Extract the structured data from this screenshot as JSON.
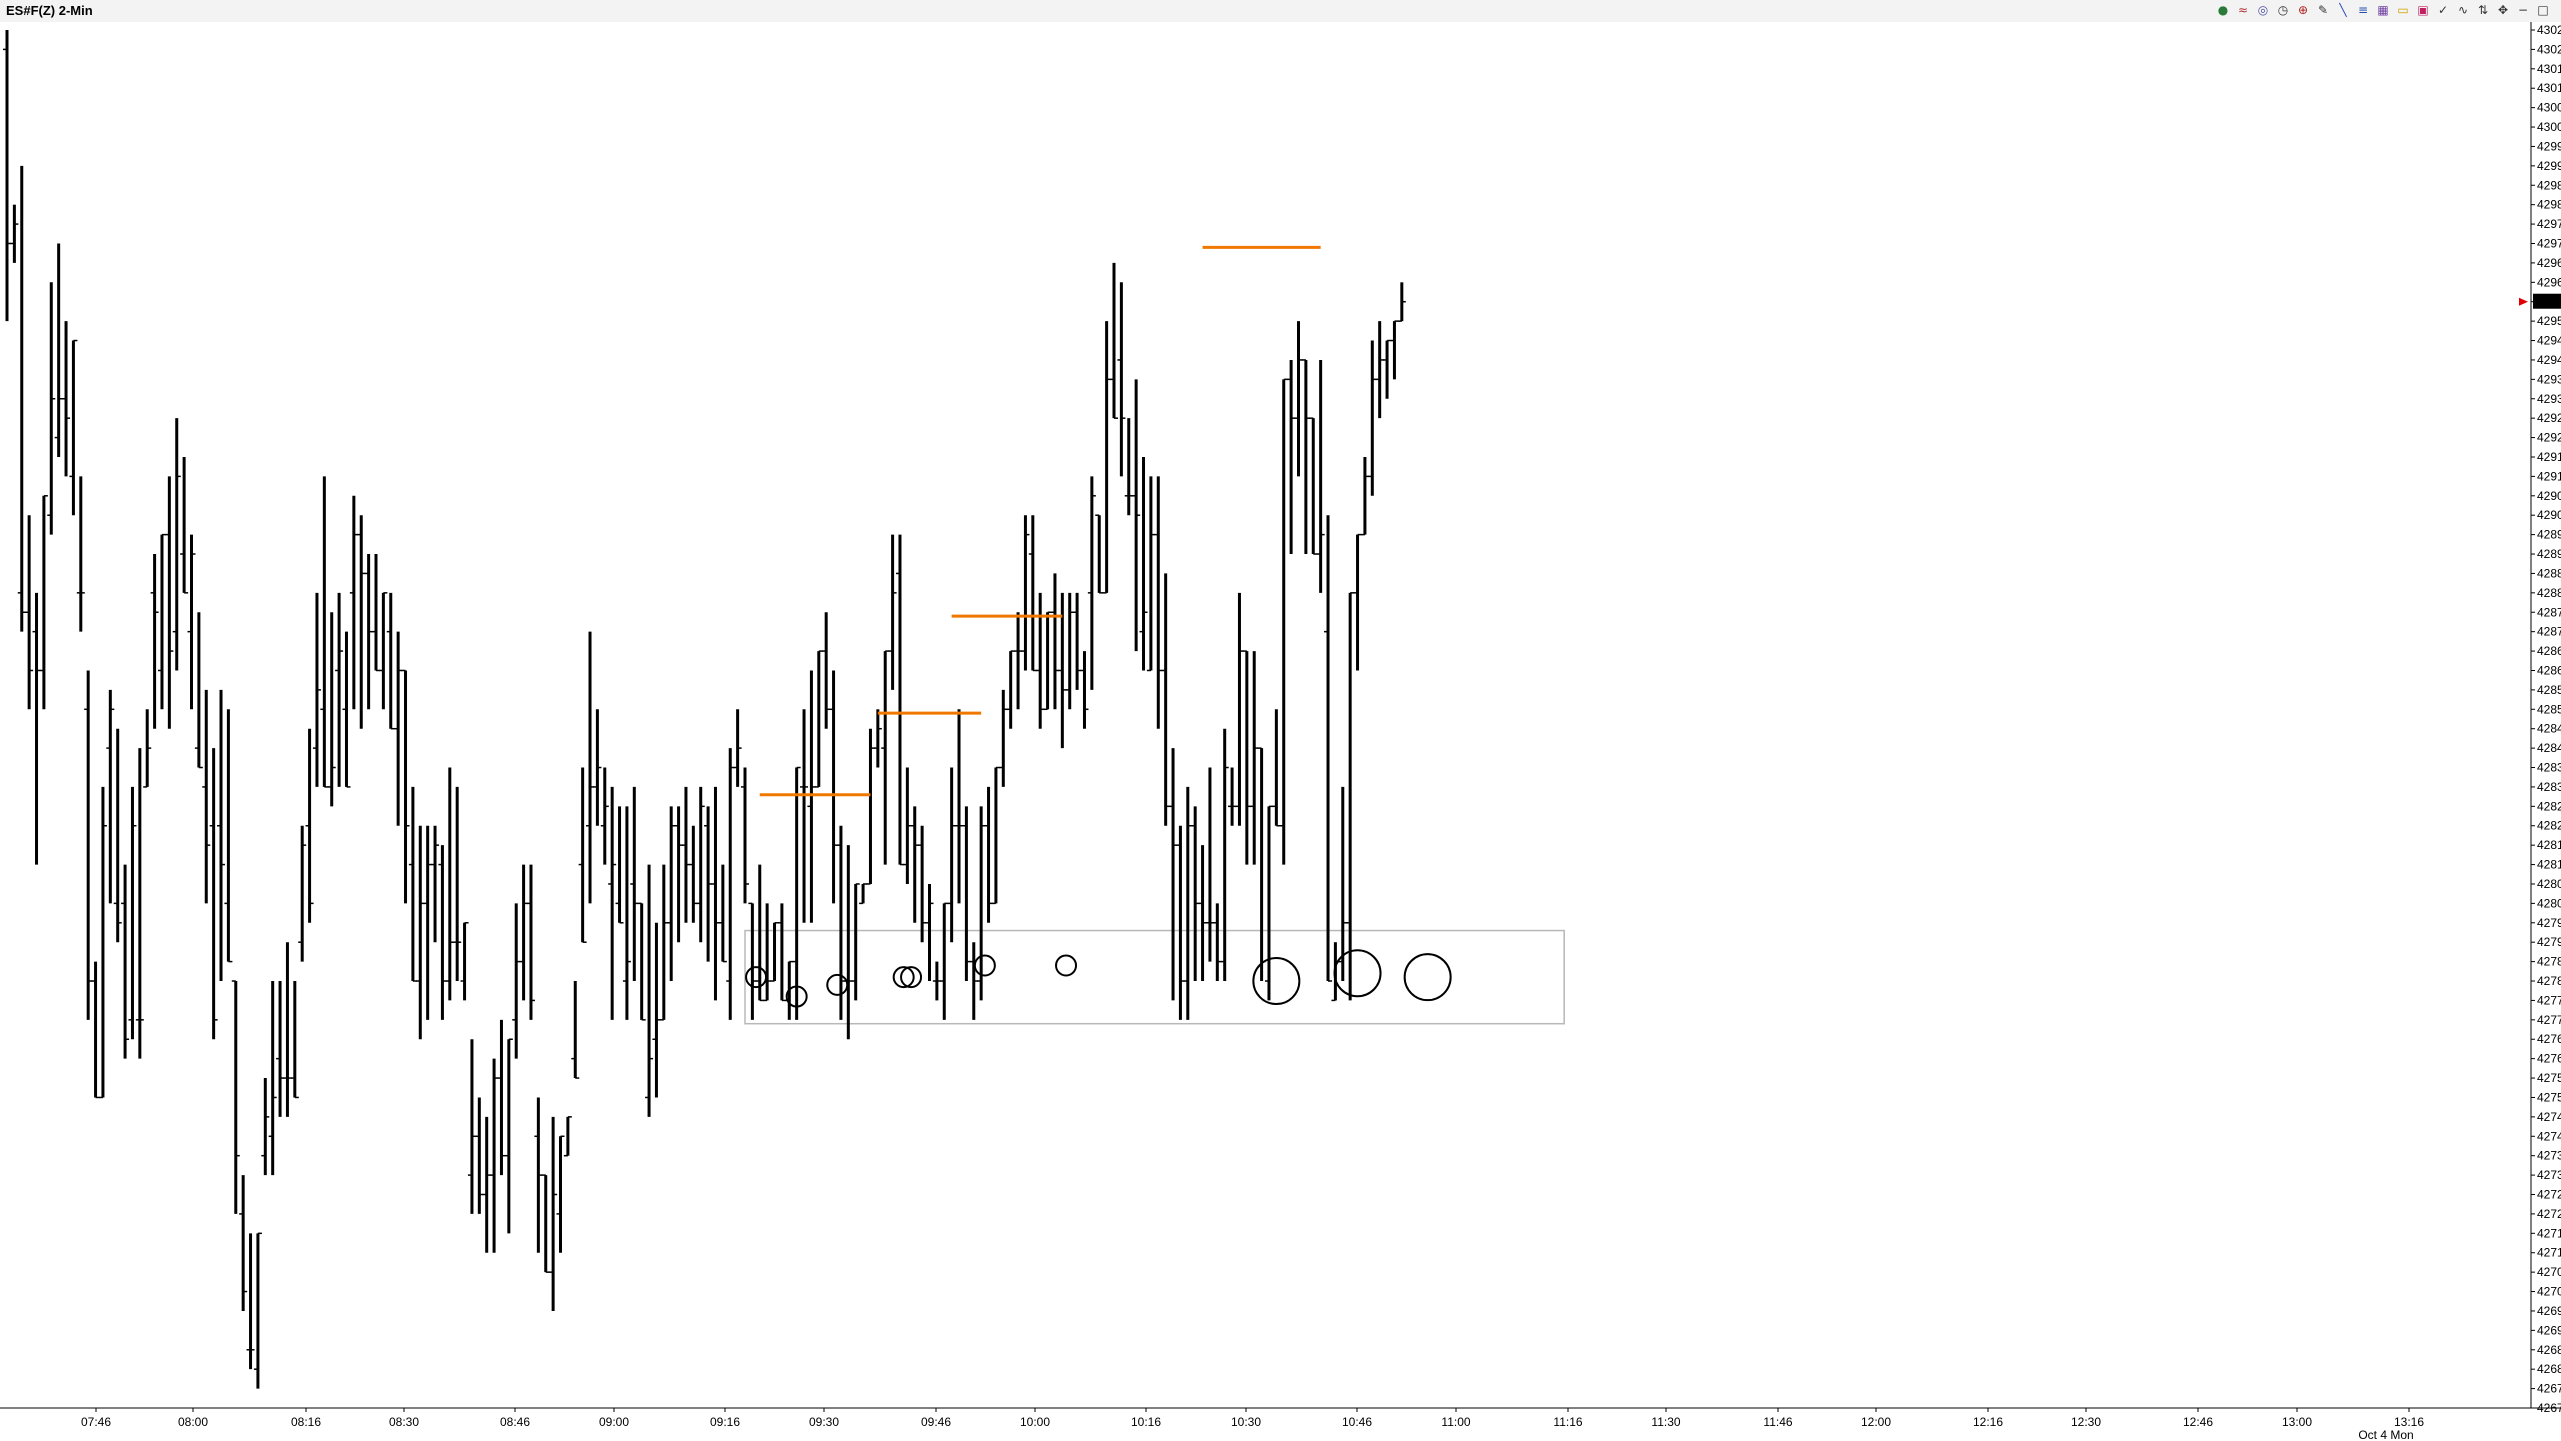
{
  "window": {
    "title": "ES#F(Z) 2-Min"
  },
  "toolbar": {
    "icons": [
      "globe-icon",
      "signal-icon",
      "circle-icon",
      "clock-icon",
      "crosshair-icon",
      "pencil-icon",
      "line-icon",
      "fib-icon",
      "grid-icon",
      "rectangle-icon",
      "highlight-icon",
      "check-icon",
      "curve-icon",
      "arrow-up-down-icon",
      "arrows-icon",
      "minus-icon",
      "box-icon"
    ]
  },
  "chart_data": {
    "type": "bar",
    "symbol": "ES#F(Z)",
    "interval": "2-Min",
    "ylim": [
      4267.0,
      4302.5
    ],
    "y_tick_step": 0.5,
    "x_ticks": [
      "07:46",
      "08:00",
      "08:16",
      "08:30",
      "08:46",
      "09:00",
      "09:16",
      "09:30",
      "09:46",
      "10:00",
      "10:16",
      "10:30",
      "10:46",
      "11:00",
      "11:16",
      "11:30",
      "11:46",
      "12:00",
      "12:16",
      "12:30",
      "12:46",
      "13:00",
      "13:16"
    ],
    "date_label": "Oct 4 Mon",
    "last_price": "4295.50",
    "bars": [
      [
        4302.0,
        4302.5,
        4295.0,
        4297.0
      ],
      [
        4297.0,
        4298.0,
        4296.5,
        4297.5
      ],
      [
        4288.0,
        4299.0,
        4287.0,
        4287.5
      ],
      [
        4287.5,
        4290.0,
        4285.0,
        4286.0
      ],
      [
        4287.0,
        4288.0,
        4281.0,
        4286.0
      ],
      [
        4286.0,
        4289.0,
        4285.0,
        4290.5
      ],
      [
        4290.0,
        4296.0,
        4289.5,
        4293.0
      ],
      [
        4292.0,
        4297.0,
        4291.5,
        4293.0
      ],
      [
        4293.0,
        4295.0,
        4291.0,
        4292.5
      ],
      [
        4291.0,
        4294.0,
        4290.0,
        4294.5
      ],
      [
        4288.0,
        4291.0,
        4287.0,
        4288.0
      ],
      [
        4285.0,
        4286.0,
        4277.0,
        4278.0
      ],
      [
        4278.0,
        4278.5,
        4275.0,
        4275.0
      ],
      [
        4275.0,
        4283.0,
        4275.0,
        4282.0
      ],
      [
        4284.0,
        4285.5,
        4280.0,
        4285.0
      ],
      [
        4280.0,
        4284.5,
        4279.0,
        4279.5
      ],
      [
        4280.0,
        4281.0,
        4276.0,
        4276.5
      ],
      [
        4277.0,
        4283.0,
        4276.5,
        4282.0
      ],
      [
        4277.0,
        4284.0,
        4276.0,
        4277.0
      ],
      [
        4283.0,
        4285.0,
        4283.0,
        4284.0
      ],
      [
        4288.0,
        4289.0,
        4284.5,
        4287.5
      ],
      [
        4286.0,
        4289.5,
        4285.0,
        4289.5
      ],
      [
        4289.5,
        4291.0,
        4284.5,
        4286.5
      ],
      [
        4287.0,
        4292.5,
        4286.0,
        4291.0
      ],
      [
        4289.0,
        4291.5,
        4288.0,
        4288.0
      ],
      [
        4287.0,
        4289.5,
        4285.0,
        4289.0
      ],
      [
        4284.0,
        4287.5,
        4284.0,
        4283.5
      ],
      [
        4283.0,
        4285.5,
        4280.0,
        4281.5
      ],
      [
        4282.0,
        4284.0,
        4276.5,
        4277.0
      ],
      [
        4282.0,
        4285.5,
        4278.0,
        4281.0
      ],
      [
        4280.0,
        4285.0,
        4278.5,
        4278.5
      ],
      [
        4278.0,
        4276.0,
        4272.0,
        4273.5
      ],
      [
        4272.0,
        4273.0,
        4269.5,
        4270.0
      ],
      [
        4268.5,
        4271.5,
        4268.0,
        4268.5
      ],
      [
        4268.0,
        4271.0,
        4267.5,
        4271.5
      ],
      [
        4273.5,
        4275.5,
        4273.0,
        4274.5
      ],
      [
        4274.0,
        4278.0,
        4273.0,
        4275.0
      ],
      [
        4276.0,
        4278.0,
        4274.5,
        4275.5
      ],
      [
        4275.5,
        4279.0,
        4274.5,
        4275.5
      ],
      [
        4275.5,
        4278.0,
        4275.0,
        4275.0
      ],
      [
        4279.0,
        4282.0,
        4278.5,
        4281.5
      ],
      [
        4282.0,
        4284.5,
        4279.5,
        4280.0
      ],
      [
        4284.0,
        4288.0,
        4283.0,
        4285.5
      ],
      [
        4285.0,
        4291.0,
        4283.0,
        4283.0
      ],
      [
        4283.0,
        4287.5,
        4282.5,
        4283.5
      ],
      [
        4286.0,
        4288.0,
        4283.0,
        4286.5
      ],
      [
        4285.0,
        4287.0,
        4283.0,
        4283.0
      ],
      [
        4288.0,
        4290.5,
        4285.0,
        4289.5
      ],
      [
        4289.5,
        4290.0,
        4284.5,
        4288.5
      ],
      [
        4288.5,
        4289.0,
        4285.0,
        4287.0
      ],
      [
        4287.0,
        4289.0,
        4286.0,
        4286.0
      ],
      [
        4286.0,
        4288.0,
        4285.0,
        4288.0
      ],
      [
        4287.0,
        4288.0,
        4285.5,
        4284.5
      ],
      [
        4284.5,
        4287.0,
        4282.0,
        4286.0
      ],
      [
        4286.0,
        4285.5,
        4280.0,
        4282.0
      ],
      [
        4281.0,
        4283.0,
        4278.0,
        4278.0
      ],
      [
        4278.0,
        4282.0,
        4276.5,
        4280.0
      ],
      [
        4280.0,
        4282.0,
        4277.0,
        4281.0
      ],
      [
        4281.0,
        4282.0,
        4279.0,
        4281.5
      ],
      [
        4281.0,
        4281.5,
        4277.0,
        4278.0
      ],
      [
        4278.0,
        4283.5,
        4277.5,
        4279.0
      ],
      [
        4279.0,
        4283.0,
        4278.0,
        4279.0
      ],
      [
        4278.0,
        4279.5,
        4277.5,
        4279.5
      ],
      [
        4273.0,
        4276.5,
        4272.0,
        4274.0
      ],
      [
        4274.0,
        4275.0,
        4272.0,
        4272.5
      ],
      [
        4272.5,
        4274.5,
        4271.0,
        4273.0
      ],
      [
        4273.0,
        4276.0,
        4271.0,
        4275.5
      ],
      [
        4275.5,
        4277.0,
        4273.0,
        4273.5
      ],
      [
        4273.5,
        4275.5,
        4271.5,
        4276.5
      ],
      [
        4277.0,
        4280.0,
        4276.0,
        4278.5
      ],
      [
        4278.5,
        4281.0,
        4277.5,
        4280.0
      ],
      [
        4280.0,
        4281.0,
        4277.0,
        4277.5
      ],
      [
        4274.0,
        4275.0,
        4271.0,
        4273.0
      ],
      [
        4273.0,
        4272.5,
        4270.5,
        4270.5
      ],
      [
        4270.5,
        4274.5,
        4269.5,
        4272.5
      ],
      [
        4272.0,
        4274.0,
        4271.0,
        4274.0
      ],
      [
        4273.5,
        4274.5,
        4274.0,
        4274.5
      ],
      [
        4276.0,
        4278.0,
        4275.5,
        4275.5
      ],
      [
        4281.0,
        4283.5,
        4279.5,
        4279.0
      ],
      [
        4282.0,
        4287.0,
        4280.0,
        4283.0
      ],
      [
        4283.0,
        4285.0,
        4282.0,
        4283.5
      ],
      [
        4282.0,
        4283.5,
        4281.0,
        4282.5
      ],
      [
        4280.5,
        4283.0,
        4277.0,
        4281.0
      ],
      [
        4280.0,
        4282.5,
        4279.5,
        4279.5
      ],
      [
        4278.0,
        4282.5,
        4277.0,
        4278.5
      ],
      [
        4280.5,
        4283.0,
        4278.0,
        4280.0
      ],
      [
        4280.0,
        4280.0,
        4277.0,
        4277.0
      ],
      [
        4275.0,
        4281.0,
        4274.5,
        4276.0
      ],
      [
        4276.5,
        4279.5,
        4275.0,
        4277.0
      ],
      [
        4277.0,
        4281.0,
        4277.0,
        4279.5
      ],
      [
        4279.5,
        4282.5,
        4278.0,
        4282.0
      ],
      [
        4282.0,
        4282.5,
        4279.0,
        4281.5
      ],
      [
        4281.5,
        4283.0,
        4279.5,
        4281.0
      ],
      [
        4281.0,
        4282.0,
        4279.5,
        4280.0
      ],
      [
        4280.0,
        4283.0,
        4279.0,
        4282.5
      ],
      [
        4282.0,
        4282.5,
        4278.5,
        4280.5
      ],
      [
        4280.5,
        4283.0,
        4277.5,
        4279.5
      ],
      [
        4279.5,
        4281.0,
        4278.5,
        4278.5
      ],
      [
        4278.0,
        4284.0,
        4277.0,
        4283.5
      ],
      [
        4283.5,
        4285.0,
        4283.0,
        4284.0
      ],
      [
        4283.0,
        4283.5,
        4280.0,
        4280.5
      ],
      [
        4280.0,
        4279.5,
        4277.0,
        4278.0
      ],
      [
        4278.0,
        4281.0,
        4277.5,
        4277.5
      ],
      [
        4277.5,
        4280.0,
        4277.5,
        4278.0
      ],
      [
        4278.0,
        4279.5,
        4278.0,
        4279.5
      ],
      [
        4279.5,
        4280.0,
        4277.5,
        4277.5
      ],
      [
        4277.5,
        4277.0,
        4277.0,
        4278.5
      ],
      [
        4278.5,
        4283.0,
        4277.0,
        4283.5
      ],
      [
        4283.0,
        4285.0,
        4279.5,
        4283.0
      ],
      [
        4282.5,
        4286.0,
        4279.5,
        4283.0
      ],
      [
        4283.0,
        4286.5,
        4283.0,
        4286.5
      ],
      [
        4286.5,
        4287.5,
        4284.5,
        4285.0
      ],
      [
        4285.0,
        4286.0,
        4280.0,
        4281.5
      ],
      [
        4281.5,
        4282.0,
        4277.0,
        4278.0
      ],
      [
        4278.0,
        4281.5,
        4276.5,
        4278.0
      ],
      [
        4278.0,
        4280.5,
        4277.5,
        4280.5
      ],
      [
        4280.0,
        4280.0,
        4280.0,
        4280.5
      ],
      [
        4280.5,
        4284.5,
        4280.5,
        4284.0
      ],
      [
        4284.0,
        4285.0,
        4283.5,
        4284.5
      ],
      [
        4284.0,
        4286.5,
        4281.0,
        4286.5
      ],
      [
        4286.5,
        4289.5,
        4285.5,
        4288.0
      ],
      [
        4288.5,
        4289.5,
        4286.5,
        4281.0
      ],
      [
        4281.0,
        4283.5,
        4280.5,
        4282.0
      ],
      [
        4282.0,
        4282.5,
        4279.5,
        4281.5
      ],
      [
        4281.5,
        4282.0,
        4279.0,
        4279.5
      ],
      [
        4279.5,
        4280.5,
        4278.0,
        4280.0
      ],
      [
        4278.0,
        4278.5,
        4277.5,
        4278.0
      ],
      [
        4278.0,
        4280.0,
        4277.0,
        4280.0
      ],
      [
        4280.0,
        4283.5,
        4279.0,
        4282.0
      ],
      [
        4282.0,
        4285.0,
        4280.0,
        4282.0
      ],
      [
        4282.0,
        4282.5,
        4278.0,
        4278.5
      ],
      [
        4278.5,
        4279.0,
        4277.0,
        4278.0
      ],
      [
        4278.0,
        4282.5,
        4277.5,
        4282.0
      ],
      [
        4282.0,
        4283.0,
        4279.5,
        4280.0
      ],
      [
        4280.0,
        4283.5,
        4280.0,
        4283.5
      ],
      [
        4283.5,
        4285.5,
        4283.0,
        4285.0
      ],
      [
        4285.0,
        4286.5,
        4284.5,
        4286.5
      ],
      [
        4286.5,
        4287.5,
        4285.0,
        4286.5
      ],
      [
        4286.5,
        4290.0,
        4286.0,
        4289.5
      ],
      [
        4289.0,
        4290.0,
        4286.0,
        4286.0
      ],
      [
        4286.0,
        4288.0,
        4284.5,
        4285.0
      ],
      [
        4285.0,
        4287.5,
        4285.0,
        4287.5
      ],
      [
        4287.5,
        4288.5,
        4285.0,
        4286.0
      ],
      [
        4286.0,
        4288.0,
        4284.0,
        4285.5
      ],
      [
        4285.5,
        4288.0,
        4285.0,
        4287.5
      ],
      [
        4287.5,
        4288.0,
        4285.5,
        4286.0
      ],
      [
        4286.0,
        4286.5,
        4284.5,
        4285.0
      ],
      [
        4288.0,
        4291.0,
        4285.5,
        4290.5
      ],
      [
        4290.0,
        4289.5,
        4288.0,
        4288.0
      ],
      [
        4288.0,
        4295.0,
        4288.0,
        4293.5
      ],
      [
        4293.5,
        4296.5,
        4292.5,
        4292.5
      ],
      [
        4294.0,
        4296.0,
        4291.0,
        4292.5
      ],
      [
        4290.5,
        4292.5,
        4290.0,
        4290.5
      ],
      [
        4290.5,
        4293.5,
        4286.5,
        4290.0
      ],
      [
        4287.0,
        4291.5,
        4286.0,
        4287.5
      ],
      [
        4286.0,
        4291.0,
        4286.0,
        4289.5
      ],
      [
        4289.5,
        4291.0,
        4284.5,
        4286.0
      ],
      [
        4286.0,
        4288.5,
        4282.0,
        4282.5
      ],
      [
        4282.5,
        4284.0,
        4277.5,
        4281.5
      ],
      [
        4281.5,
        4282.0,
        4277.0,
        4278.0
      ],
      [
        4278.0,
        4283.0,
        4277.0,
        4282.0
      ],
      [
        4282.0,
        4282.5,
        4278.0,
        4280.0
      ],
      [
        4280.0,
        4281.5,
        4278.0,
        4279.5
      ],
      [
        4279.5,
        4283.5,
        4278.5,
        4279.5
      ],
      [
        4279.5,
        4280.0,
        4278.0,
        4278.5
      ],
      [
        4278.5,
        4284.5,
        4278.0,
        4283.5
      ],
      [
        4282.5,
        4283.5,
        4282.0,
        4282.5
      ],
      [
        4282.5,
        4288.0,
        4282.0,
        4286.5
      ],
      [
        4286.5,
        4286.5,
        4281.0,
        4282.5
      ],
      [
        4282.5,
        4286.5,
        4281.0,
        4284.0
      ],
      [
        4284.0,
        4283.5,
        4278.0,
        4278.5
      ],
      [
        4278.0,
        4282.5,
        4277.5,
        4282.5
      ],
      [
        4282.5,
        4285.0,
        4282.0,
        4282.0
      ],
      [
        4282.0,
        4291.0,
        4281.0,
        4293.5
      ],
      [
        4293.5,
        4294.0,
        4289.0,
        4292.5
      ],
      [
        4292.5,
        4295.0,
        4291.0,
        4294.0
      ],
      [
        4294.0,
        4293.5,
        4289.0,
        4292.5
      ],
      [
        4292.5,
        4291.0,
        4289.0,
        4289.0
      ],
      [
        4289.0,
        4294.0,
        4288.0,
        4289.5
      ],
      [
        4287.0,
        4290.0,
        4278.0,
        4278.0
      ],
      [
        4277.5,
        4279.0,
        4277.5,
        4278.5
      ],
      [
        4278.5,
        4283.0,
        4278.0,
        4279.5
      ],
      [
        4279.5,
        4288.0,
        4277.5,
        4288.0
      ],
      [
        4288.0,
        4288.5,
        4286.0,
        4289.5
      ],
      [
        4289.5,
        4291.5,
        4289.5,
        4291.0
      ],
      [
        4291.0,
        4294.5,
        4290.5,
        4293.5
      ],
      [
        4293.5,
        4295.0,
        4292.5,
        4294.0
      ],
      [
        4294.0,
        4294.5,
        4293.0,
        4294.5
      ],
      [
        4294.5,
        4295.0,
        4293.5,
        4295.0
      ],
      [
        4295.0,
        4296.0,
        4295.0,
        4295.5
      ]
    ],
    "resistance_lines": [
      {
        "x_from": 102,
        "x_to": 117,
        "y": 4282.8
      },
      {
        "x_from": 118,
        "x_to": 132,
        "y": 4284.9
      },
      {
        "x_from": 128,
        "x_to": 143,
        "y": 4287.4
      },
      {
        "x_from": 162,
        "x_to": 178,
        "y": 4296.9
      }
    ],
    "support_zone": {
      "x_from": 100,
      "x_to": 211,
      "y_low": 4276.9,
      "y_high": 4279.3
    },
    "circles": [
      {
        "x": 101.5,
        "y": 4278.1
      },
      {
        "x": 107.0,
        "y": 4277.6
      },
      {
        "x": 112.5,
        "y": 4277.9
      },
      {
        "x": 121.5,
        "y": 4278.1
      },
      {
        "x": 122.5,
        "y": 4278.1
      },
      {
        "x": 132.5,
        "y": 4278.4
      },
      {
        "x": 143.5,
        "y": 4278.4
      },
      {
        "x": 172.0,
        "y": 4278.0
      },
      {
        "x": 183.0,
        "y": 4278.2
      },
      {
        "x": 192.5,
        "y": 4278.1
      }
    ]
  }
}
